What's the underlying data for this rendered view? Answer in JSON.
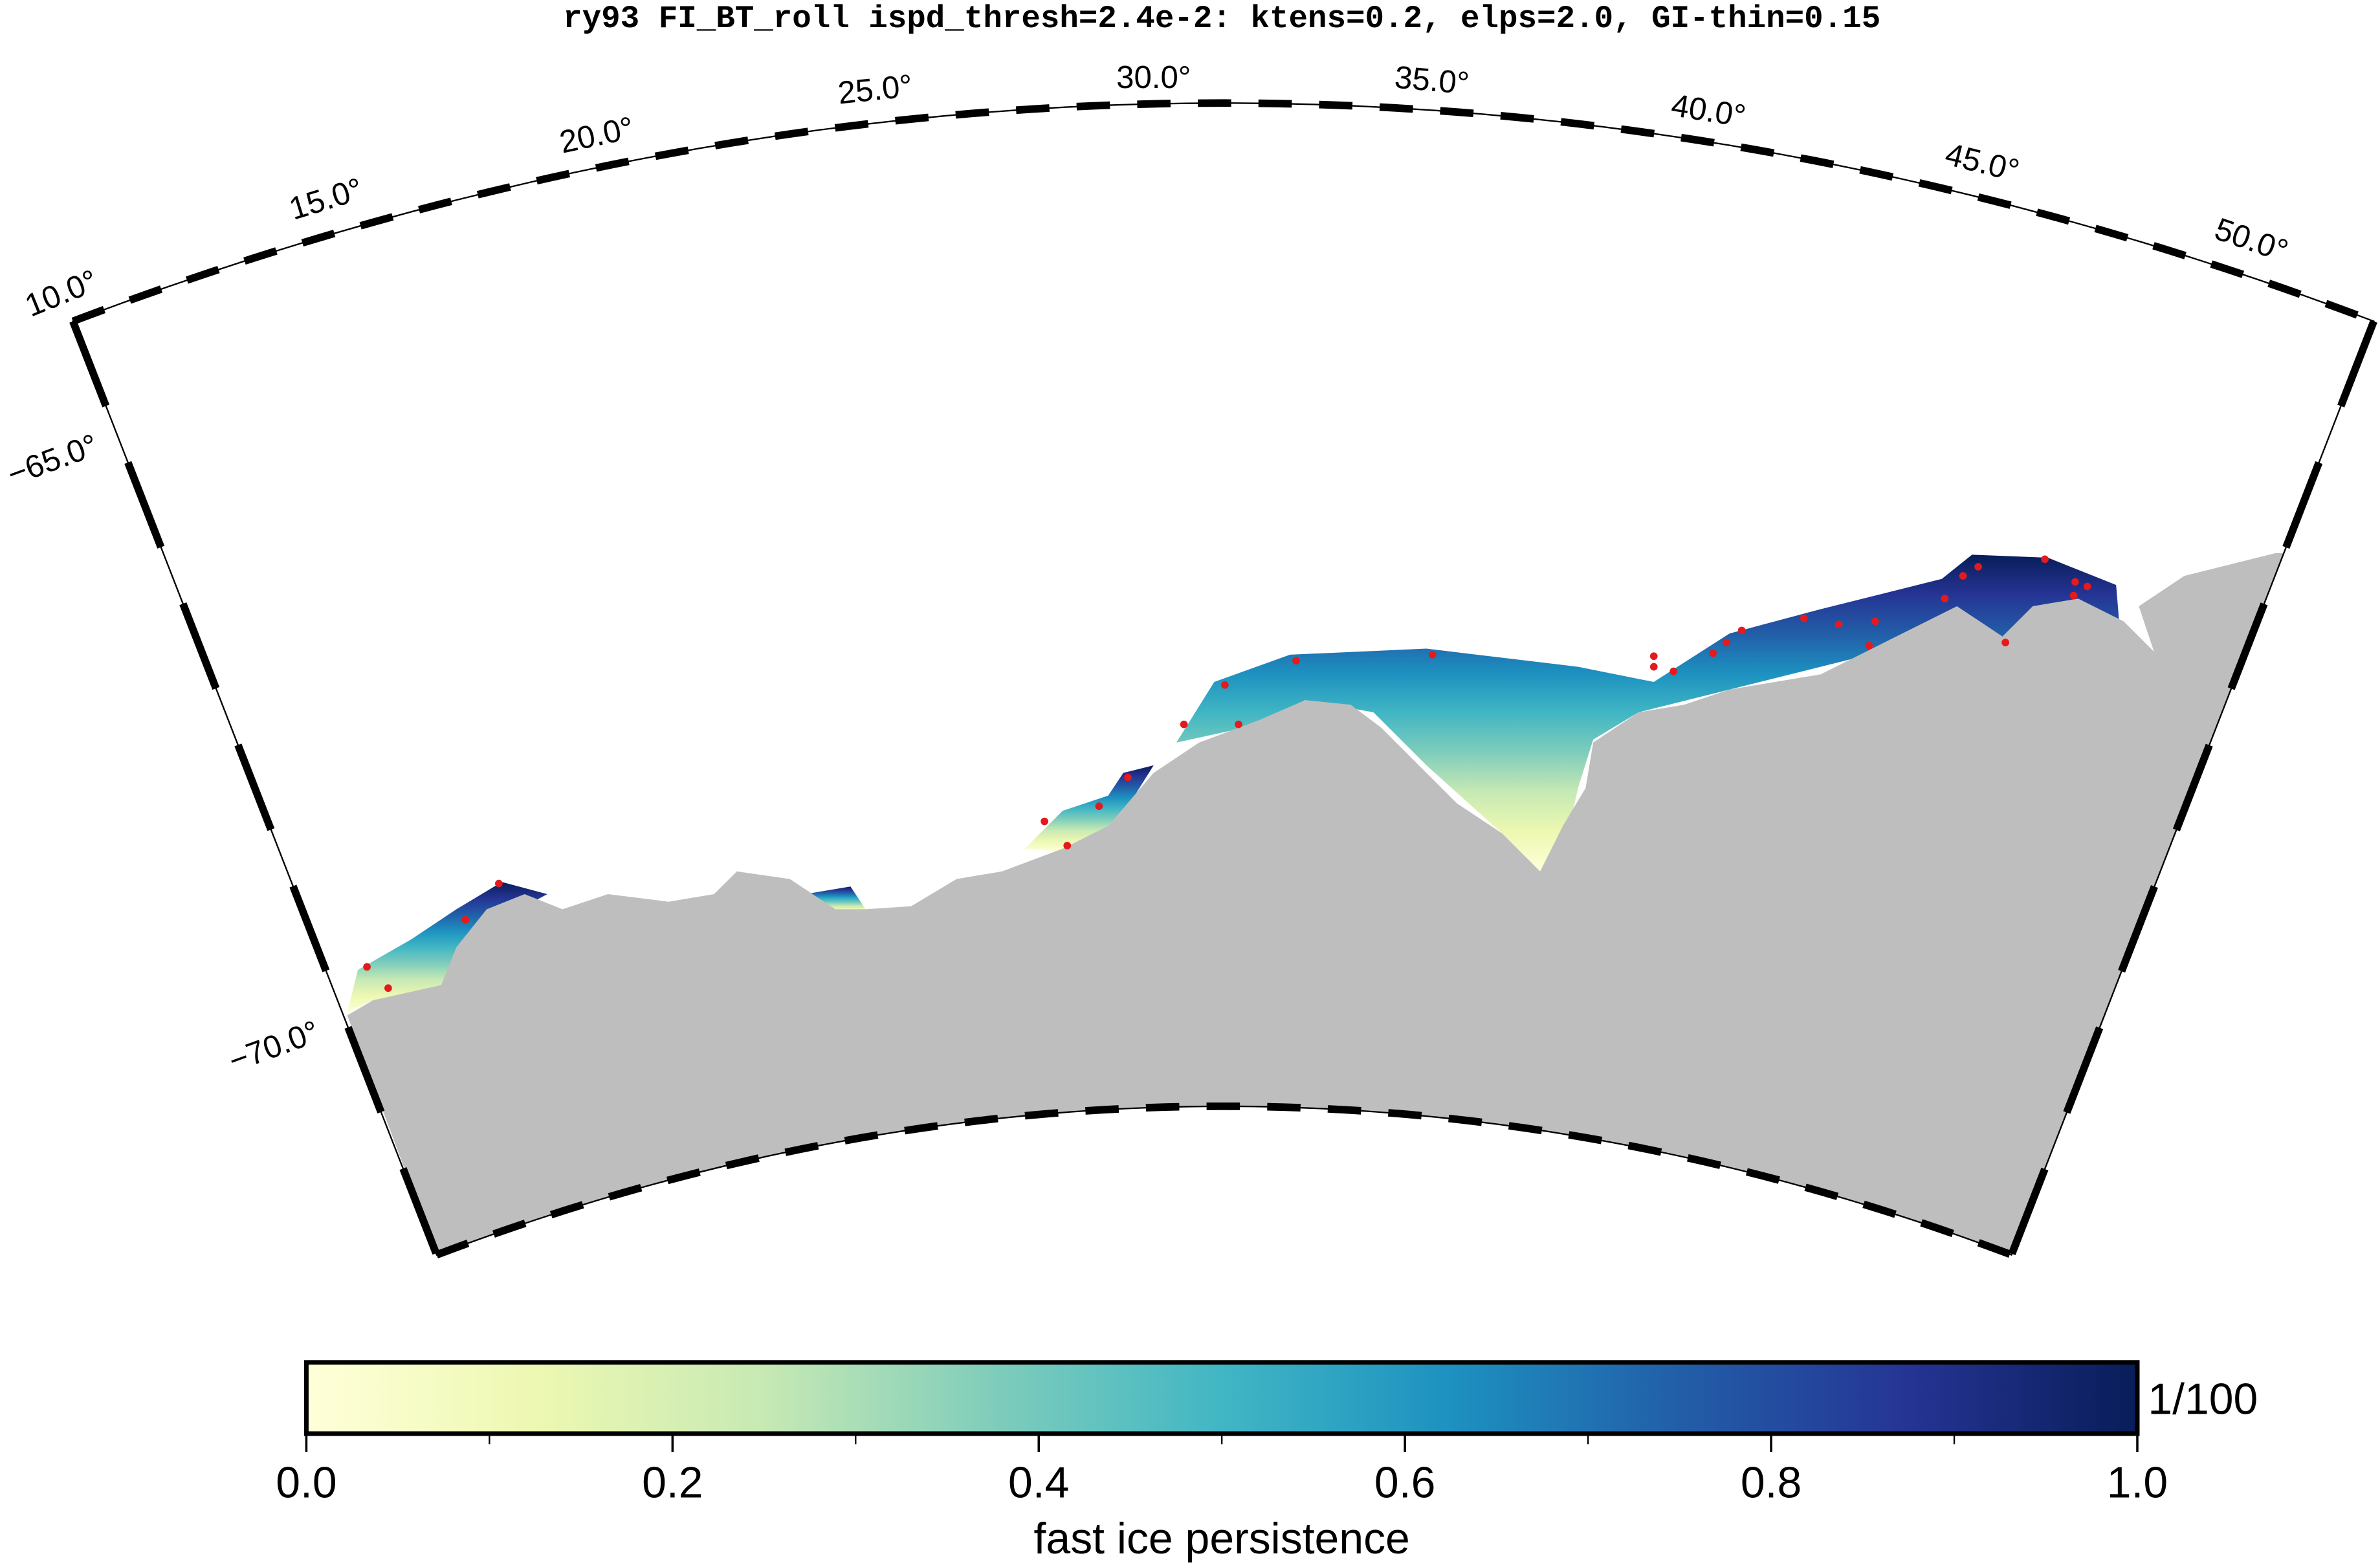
{
  "title": "ry93 FI_BT_roll ispd_thresh=2.4e-2: ktens=0.2, elps=2.0, GI-thin=0.15",
  "map": {
    "longitude_labels": [
      "10.0°",
      "15.0°",
      "20.0°",
      "25.0°",
      "30.0°",
      "35.0°",
      "40.0°",
      "45.0°",
      "50.0°"
    ],
    "latitude_labels": [
      "−65.0°",
      "−70.0°"
    ],
    "land_color": "#bebebe"
  },
  "colorbar": {
    "label": "fast ice persistence",
    "unit": "1/100",
    "range": [
      0,
      1
    ],
    "ticks": [
      {
        "value": 0,
        "label": "0.0"
      },
      0.2,
      0.4,
      0.6,
      0.8,
      {
        "value": 1,
        "label": "1.0"
      }
    ],
    "minor_ticks": [
      0.1,
      0.3,
      0.5,
      0.7,
      0.9
    ],
    "colormap": [
      "#ffffd9",
      "#edf8b1",
      "#c7e9b4",
      "#7fcdbb",
      "#41b6c4",
      "#1d91c0",
      "#225ea8",
      "#253494",
      "#081d58"
    ]
  }
}
